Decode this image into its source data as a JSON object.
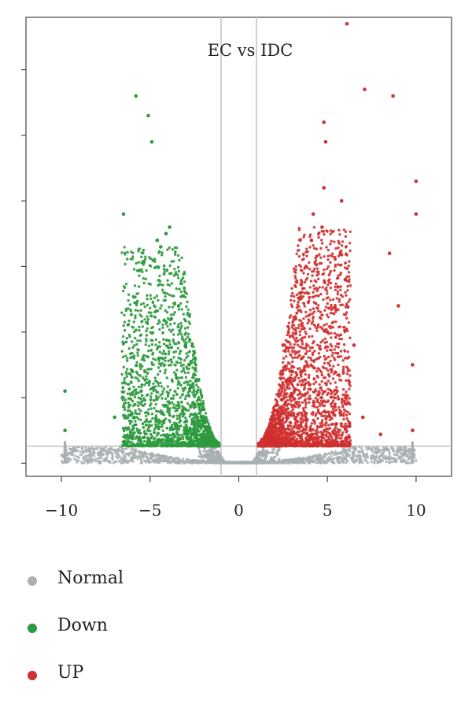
{
  "chart_data": {
    "type": "scatter",
    "title": "EC vs IDC",
    "xlabel": "",
    "ylabel": "",
    "xlim": [
      -12,
      12
    ],
    "ylim": [
      -1,
      34
    ],
    "x_ticks": [
      -10,
      -5,
      0,
      5,
      10
    ],
    "x_tick_labels": [
      "−10",
      "−5",
      "0",
      "5",
      "10"
    ],
    "y_ticks": [
      0,
      5,
      10,
      15,
      20,
      25,
      30
    ],
    "y_tick_labels": [],
    "vlines": [
      -1,
      1
    ],
    "hline": 1.3,
    "grid": false,
    "legend_position": "bottom-left",
    "series": [
      {
        "name": "Normal",
        "color": "#a9b0b3",
        "points": [
          [
            -9.8,
            0.6
          ],
          [
            -9.8,
            1.2
          ],
          [
            -7.5,
            0.3
          ],
          [
            -6,
            0.4
          ],
          [
            -4,
            0.2
          ],
          [
            -2,
            0.15
          ],
          [
            0,
            0.05
          ],
          [
            2,
            0.15
          ],
          [
            4,
            0.2
          ],
          [
            6,
            0.35
          ],
          [
            7.5,
            0.4
          ],
          [
            9.8,
            0.5
          ],
          [
            9.8,
            1.1
          ]
        ]
      },
      {
        "name": "Down",
        "color": "#2e9a3e",
        "points": [
          [
            -9.8,
            2.5
          ],
          [
            -9.8,
            5.5
          ],
          [
            -6.5,
            19
          ],
          [
            -5.8,
            28
          ],
          [
            -5.1,
            26.5
          ],
          [
            -4.9,
            24.5
          ],
          [
            -4.6,
            17
          ],
          [
            -4.4,
            16.5
          ],
          [
            -4.1,
            17.5
          ],
          [
            -3.9,
            18
          ],
          [
            -3.4,
            12
          ],
          [
            -3.8,
            11
          ],
          [
            -3,
            9
          ],
          [
            -4.5,
            8
          ],
          [
            -6,
            7
          ],
          [
            -7,
            3.5
          ],
          [
            -2.5,
            4.5
          ],
          [
            -2.2,
            3
          ],
          [
            -1.5,
            1.8
          ],
          [
            -5.5,
            5.5
          ],
          [
            -3.5,
            6.5
          ],
          [
            -2.8,
            7.5
          ]
        ]
      },
      {
        "name": "UP",
        "color": "#d03030",
        "points": [
          [
            9.8,
            2.5
          ],
          [
            9.8,
            7.5
          ],
          [
            6.1,
            33.5
          ],
          [
            7.1,
            28.5
          ],
          [
            8.7,
            28
          ],
          [
            10,
            21.5
          ],
          [
            10,
            19
          ],
          [
            4.8,
            26
          ],
          [
            4.9,
            24.5
          ],
          [
            4.8,
            21
          ],
          [
            5.8,
            20
          ],
          [
            4.7,
            18
          ],
          [
            4.2,
            19
          ],
          [
            4.1,
            17
          ],
          [
            8.5,
            16
          ],
          [
            3.8,
            15
          ],
          [
            3.5,
            13
          ],
          [
            6,
            14
          ],
          [
            9,
            12
          ],
          [
            5,
            10
          ],
          [
            6.5,
            9
          ],
          [
            2.5,
            9
          ],
          [
            3,
            7
          ],
          [
            4,
            6
          ],
          [
            2,
            4
          ],
          [
            1.6,
            2.5
          ],
          [
            1.3,
            1.8
          ],
          [
            5.5,
            3
          ],
          [
            7,
            3.5
          ],
          [
            8,
            2.2
          ],
          [
            3.2,
            11
          ]
        ]
      }
    ]
  },
  "legend": {
    "items": [
      {
        "label": "Normal",
        "color": "#a9b0b3"
      },
      {
        "label": "Down",
        "color": "#2e9a3e"
      },
      {
        "label": "UP",
        "color": "#d03030"
      }
    ]
  }
}
